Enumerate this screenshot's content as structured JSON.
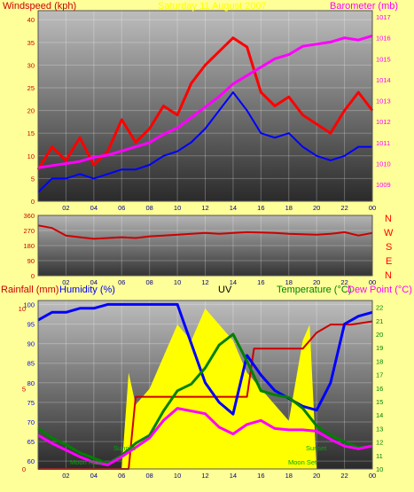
{
  "header": {
    "windspeed": "Windspeed (kph)",
    "barometer": "Barometer (mb)",
    "date_title": "Saturday 11 August 2007"
  },
  "chart_data": [
    {
      "type": "line",
      "ylabel_left": "Windspeed (kph)",
      "ylabel_right": "Barometer (mb)",
      "y_ticks_left": [
        "0",
        "5",
        "10",
        "15",
        "20",
        "25",
        "30",
        "35",
        "40"
      ],
      "y_ticks_right": [
        "1009",
        "1010",
        "1011",
        "1012",
        "1013",
        "1014",
        "1015",
        "1016",
        "1017"
      ],
      "x_ticks": [
        "02",
        "04",
        "06",
        "08",
        "10",
        "12",
        "14",
        "16",
        "18",
        "20",
        "22",
        "00"
      ],
      "ylim_left": [
        0,
        42
      ],
      "ylim_right": [
        1008.2,
        1017.3
      ],
      "series": [
        {
          "name": "gust",
          "color": "#ff0000",
          "axis": "left",
          "points": [
            [
              0,
              7
            ],
            [
              1,
              12
            ],
            [
              2,
              9
            ],
            [
              3,
              14
            ],
            [
              4,
              8
            ],
            [
              5,
              11
            ],
            [
              6,
              18
            ],
            [
              7,
              13
            ],
            [
              8,
              16
            ],
            [
              9,
              21
            ],
            [
              10,
              19
            ],
            [
              11,
              26
            ],
            [
              12,
              30
            ],
            [
              13,
              33
            ],
            [
              14,
              36
            ],
            [
              15,
              34
            ],
            [
              16,
              24
            ],
            [
              17,
              21
            ],
            [
              18,
              23
            ],
            [
              19,
              19
            ],
            [
              20,
              17
            ],
            [
              21,
              15
            ],
            [
              22,
              20
            ],
            [
              23,
              24
            ],
            [
              24,
              20
            ]
          ]
        },
        {
          "name": "average",
          "color": "#0000ff",
          "axis": "left",
          "points": [
            [
              0,
              2
            ],
            [
              1,
              5
            ],
            [
              2,
              5
            ],
            [
              3,
              6
            ],
            [
              4,
              5
            ],
            [
              5,
              6
            ],
            [
              6,
              7
            ],
            [
              7,
              7
            ],
            [
              8,
              8
            ],
            [
              9,
              10
            ],
            [
              10,
              11
            ],
            [
              11,
              13
            ],
            [
              12,
              16
            ],
            [
              13,
              20
            ],
            [
              14,
              24
            ],
            [
              15,
              20
            ],
            [
              16,
              15
            ],
            [
              17,
              14
            ],
            [
              18,
              15
            ],
            [
              19,
              12
            ],
            [
              20,
              10
            ],
            [
              21,
              9
            ],
            [
              22,
              10
            ],
            [
              23,
              12
            ],
            [
              24,
              12
            ]
          ]
        },
        {
          "name": "barometer",
          "color": "#ff00ff",
          "axis": "right",
          "points": [
            [
              0,
              1009.8
            ],
            [
              1,
              1009.9
            ],
            [
              2,
              1010.0
            ],
            [
              3,
              1010.1
            ],
            [
              4,
              1010.3
            ],
            [
              5,
              1010.4
            ],
            [
              6,
              1010.6
            ],
            [
              7,
              1010.8
            ],
            [
              8,
              1011.0
            ],
            [
              9,
              1011.4
            ],
            [
              10,
              1011.7
            ],
            [
              11,
              1012.2
            ],
            [
              12,
              1012.7
            ],
            [
              13,
              1013.2
            ],
            [
              14,
              1013.8
            ],
            [
              15,
              1014.2
            ],
            [
              16,
              1014.6
            ],
            [
              17,
              1015.0
            ],
            [
              18,
              1015.2
            ],
            [
              19,
              1015.6
            ],
            [
              20,
              1015.7
            ],
            [
              21,
              1015.8
            ],
            [
              22,
              1016.0
            ],
            [
              23,
              1015.9
            ],
            [
              24,
              1016.1
            ]
          ]
        }
      ]
    },
    {
      "type": "line",
      "y_ticks_left": [
        "0",
        "90",
        "180",
        "270",
        "360"
      ],
      "compass": [
        "N",
        "W",
        "S",
        "E",
        "N"
      ],
      "ylim": [
        0,
        360
      ],
      "series": [
        {
          "name": "direction",
          "color": "#cc0000",
          "points": [
            [
              0,
              300
            ],
            [
              1,
              285
            ],
            [
              2,
              240
            ],
            [
              3,
              230
            ],
            [
              4,
              220
            ],
            [
              5,
              225
            ],
            [
              6,
              230
            ],
            [
              7,
              225
            ],
            [
              8,
              235
            ],
            [
              9,
              240
            ],
            [
              10,
              245
            ],
            [
              11,
              250
            ],
            [
              12,
              255
            ],
            [
              13,
              250
            ],
            [
              14,
              255
            ],
            [
              15,
              260
            ],
            [
              16,
              258
            ],
            [
              17,
              255
            ],
            [
              18,
              250
            ],
            [
              19,
              248
            ],
            [
              20,
              245
            ],
            [
              21,
              250
            ],
            [
              22,
              260
            ],
            [
              23,
              240
            ],
            [
              24,
              255
            ]
          ]
        }
      ]
    },
    {
      "type": "line",
      "labels": {
        "rainfall": "Rainfall (mm)",
        "humidity": "Humidity (%)",
        "uv": "UV",
        "temperature": "Temperature (°C)",
        "dewpoint": "Dew Point (°C)"
      },
      "y_ticks_humidity": [
        "60",
        "65",
        "70",
        "75",
        "80",
        "85",
        "90",
        "95",
        "100"
      ],
      "y_ticks_rain": [
        "0",
        "5",
        "10"
      ],
      "y_ticks_temp": [
        "10",
        "11",
        "12",
        "13",
        "14",
        "15",
        "16",
        "17",
        "18",
        "19",
        "20",
        "21",
        "22"
      ],
      "annotations": [
        "Sunrise",
        "Moon Rise",
        "Sunset",
        "Moon Set"
      ],
      "ylim_humidity": [
        58,
        101
      ],
      "ylim_temp": [
        10,
        22.5
      ],
      "series": [
        {
          "name": "humidity",
          "color": "#0000ff",
          "axis": "humidity",
          "points": [
            [
              0,
              96
            ],
            [
              1,
              98
            ],
            [
              2,
              98
            ],
            [
              3,
              99
            ],
            [
              4,
              99
            ],
            [
              5,
              100
            ],
            [
              6,
              100
            ],
            [
              7,
              100
            ],
            [
              8,
              100
            ],
            [
              9,
              100
            ],
            [
              10,
              100
            ],
            [
              10.5,
              95
            ],
            [
              11,
              90
            ],
            [
              12,
              80
            ],
            [
              13,
              75
            ],
            [
              14,
              72
            ],
            [
              15,
              87
            ],
            [
              16,
              82
            ],
            [
              17,
              78
            ],
            [
              18,
              76
            ],
            [
              19,
              74
            ],
            [
              20,
              73
            ],
            [
              21,
              80
            ],
            [
              22,
              95
            ],
            [
              23,
              97
            ],
            [
              24,
              98
            ]
          ]
        },
        {
          "name": "temperature",
          "color": "#008000",
          "axis": "temp",
          "points": [
            [
              0,
              13
            ],
            [
              1,
              12.3
            ],
            [
              2,
              11.8
            ],
            [
              3,
              11.2
            ],
            [
              4,
              10.8
            ],
            [
              5,
              10.4
            ],
            [
              6,
              11
            ],
            [
              7,
              11.9
            ],
            [
              8,
              12.5
            ],
            [
              9,
              14.3
            ],
            [
              10,
              15.8
            ],
            [
              11,
              16.3
            ],
            [
              12,
              17.5
            ],
            [
              13,
              19.2
            ],
            [
              14,
              20
            ],
            [
              15,
              18
            ],
            [
              16,
              15.8
            ],
            [
              17,
              15.5
            ],
            [
              18,
              15.3
            ],
            [
              19,
              14.5
            ],
            [
              20,
              13.2
            ],
            [
              21,
              12.5
            ],
            [
              22,
              12
            ],
            [
              23,
              11.6
            ],
            [
              24,
              11.7
            ]
          ]
        },
        {
          "name": "dewpoint",
          "color": "#ff00ff",
          "axis": "temp",
          "points": [
            [
              0,
              12.5
            ],
            [
              1,
              11.9
            ],
            [
              2,
              11.4
            ],
            [
              3,
              10.9
            ],
            [
              4,
              10.5
            ],
            [
              5,
              10.3
            ],
            [
              6,
              10.9
            ],
            [
              7,
              11.6
            ],
            [
              8,
              12.3
            ],
            [
              9,
              13.6
            ],
            [
              10,
              14.5
            ],
            [
              11,
              14.3
            ],
            [
              12,
              14.1
            ],
            [
              13,
              13.1
            ],
            [
              14,
              12.6
            ],
            [
              15,
              13.3
            ],
            [
              16,
              13.6
            ],
            [
              17,
              13
            ],
            [
              18,
              12.9
            ],
            [
              19,
              12.9
            ],
            [
              20,
              12.8
            ],
            [
              21,
              12.2
            ],
            [
              22,
              11.7
            ],
            [
              23,
              11.5
            ],
            [
              24,
              11.7
            ]
          ]
        },
        {
          "name": "rainfall",
          "color": "#cc0000",
          "axis": "rain",
          "points": [
            [
              0,
              0
            ],
            [
              6.5,
              0
            ],
            [
              7,
              4.5
            ],
            [
              10,
              4.5
            ],
            [
              15,
              4.5
            ],
            [
              15.5,
              7.5
            ],
            [
              19,
              7.5
            ],
            [
              20,
              8.5
            ],
            [
              21,
              9
            ],
            [
              22.5,
              9
            ],
            [
              24,
              9.2
            ]
          ]
        },
        {
          "name": "uv",
          "color": "#ffff00",
          "axis": "uv",
          "points": [
            [
              0,
              0
            ],
            [
              6,
              0
            ],
            [
              6.5,
              6
            ],
            [
              7,
              4
            ],
            [
              8,
              5
            ],
            [
              9,
              7
            ],
            [
              10,
              9
            ],
            [
              11,
              8
            ],
            [
              12,
              10
            ],
            [
              13,
              9
            ],
            [
              14,
              8
            ],
            [
              15,
              6
            ],
            [
              16,
              5
            ],
            [
              17,
              4
            ],
            [
              18,
              3
            ],
            [
              19,
              8
            ],
            [
              19.5,
              9
            ],
            [
              20,
              0
            ],
            [
              24,
              0
            ]
          ]
        }
      ]
    }
  ]
}
